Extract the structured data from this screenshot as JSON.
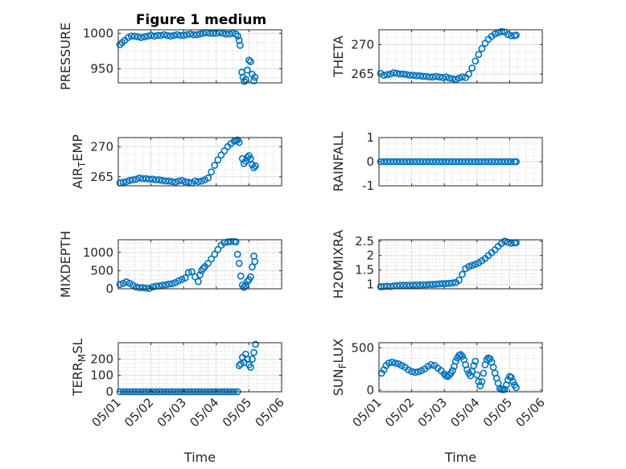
{
  "figure_title": "Figure 1 medium",
  "style": {
    "marker_color": "#0072BD",
    "grid_color": "#b9b9b9",
    "axis_color": "#262626"
  },
  "chart_data": [
    {
      "type": "scatter",
      "ylabel": "PRESSURE",
      "xlim": [
        "05/01",
        "05/06"
      ],
      "ylim": [
        930,
        1005
      ],
      "yticks": [
        950,
        1000
      ],
      "x_ticks_visible": false,
      "grid": true,
      "marker": "circle-open",
      "series": [
        {
          "x": [
            1.05,
            1.12,
            1.2,
            1.3,
            1.4,
            1.5,
            1.6,
            1.7,
            1.8,
            1.9,
            2.0,
            2.1,
            2.2,
            2.3,
            2.4,
            2.5,
            2.6,
            2.7,
            2.8,
            2.9,
            3.0,
            3.1,
            3.2,
            3.3,
            3.4,
            3.5,
            3.6,
            3.7,
            3.8,
            3.9,
            4.0,
            4.1,
            4.2,
            4.3,
            4.4,
            4.5,
            4.6,
            4.66,
            4.7,
            4.73,
            4.78,
            4.82,
            4.86,
            4.9,
            4.95,
            5.0,
            5.05,
            5.1,
            5.15,
            5.18
          ],
          "y": [
            984,
            987,
            990,
            994,
            996,
            996,
            995,
            994,
            995,
            996,
            997,
            996,
            997,
            997,
            998,
            997,
            996,
            997,
            998,
            997,
            997,
            998,
            999,
            998,
            998,
            999,
            1000,
            1001,
            1000,
            1000,
            1000,
            1001,
            1000,
            999,
            999,
            1000,
            999,
            996,
            990,
            983,
            945,
            938,
            932,
            935,
            948,
            962,
            960,
            942,
            933,
            938
          ]
        }
      ]
    },
    {
      "type": "scatter",
      "ylabel": "THETA",
      "xlim": [
        "05/01",
        "05/06"
      ],
      "ylim": [
        263.5,
        272.5
      ],
      "yticks": [
        265,
        270
      ],
      "x_ticks_visible": false,
      "grid": true,
      "marker": "circle-open",
      "series": [
        {
          "x": [
            1.05,
            1.15,
            1.25,
            1.35,
            1.45,
            1.55,
            1.65,
            1.75,
            1.85,
            1.95,
            2.05,
            2.15,
            2.25,
            2.35,
            2.45,
            2.55,
            2.65,
            2.75,
            2.85,
            2.95,
            3.05,
            3.15,
            3.25,
            3.35,
            3.45,
            3.55,
            3.65,
            3.75,
            3.85,
            3.95,
            4.05,
            4.15,
            4.25,
            4.35,
            4.45,
            4.55,
            4.65,
            4.75,
            4.85,
            4.95,
            5.05,
            5.15,
            5.2
          ],
          "y": [
            265.1,
            264.8,
            264.9,
            265.0,
            265.2,
            265.1,
            265.0,
            265.0,
            264.9,
            264.8,
            264.8,
            264.7,
            264.7,
            264.6,
            264.6,
            264.5,
            264.5,
            264.6,
            264.5,
            264.4,
            264.5,
            264.3,
            264.2,
            264.1,
            264.3,
            264.5,
            264.4,
            265.0,
            266.0,
            267.2,
            268.3,
            269.3,
            270.2,
            270.9,
            271.4,
            271.8,
            272.0,
            272.2,
            272.1,
            271.7,
            271.5,
            271.5,
            271.6
          ]
        }
      ]
    },
    {
      "type": "scatter",
      "ylabel": "AIR_TEMP",
      "xlim": [
        "05/01",
        "05/06"
      ],
      "ylim": [
        263.5,
        271.5
      ],
      "yticks": [
        265,
        270
      ],
      "x_ticks_visible": false,
      "grid": true,
      "marker": "circle-open",
      "series": [
        {
          "x": [
            1.05,
            1.15,
            1.25,
            1.35,
            1.45,
            1.55,
            1.65,
            1.75,
            1.85,
            1.95,
            2.05,
            2.15,
            2.25,
            2.35,
            2.45,
            2.55,
            2.65,
            2.75,
            2.85,
            2.95,
            3.05,
            3.15,
            3.25,
            3.35,
            3.45,
            3.55,
            3.65,
            3.75,
            3.85,
            3.95,
            4.05,
            4.15,
            4.25,
            4.35,
            4.45,
            4.55,
            4.6,
            4.65,
            4.7,
            4.8,
            4.85,
            4.9,
            4.95,
            5.0,
            5.05,
            5.1,
            5.15,
            5.2
          ],
          "y": [
            264.0,
            264.1,
            264.2,
            264.4,
            264.5,
            264.6,
            264.8,
            264.7,
            264.7,
            264.6,
            264.6,
            264.5,
            264.5,
            264.4,
            264.3,
            264.3,
            264.2,
            264.1,
            264.3,
            264.4,
            264.2,
            264.1,
            264.0,
            264.3,
            264.2,
            264.3,
            264.5,
            264.8,
            265.8,
            266.9,
            267.8,
            268.6,
            269.3,
            270.0,
            270.5,
            270.9,
            271.0,
            271.1,
            270.7,
            268.0,
            267.2,
            267.6,
            268.2,
            268.5,
            268.0,
            267.0,
            266.5,
            266.8
          ]
        }
      ]
    },
    {
      "type": "scatter",
      "ylabel": "RAINFALL",
      "xlim": [
        "05/01",
        "05/06"
      ],
      "ylim": [
        -1,
        1
      ],
      "yticks": [
        -1,
        0,
        1
      ],
      "x_ticks_visible": false,
      "grid": true,
      "marker": "circle-open",
      "series": [
        {
          "x": [
            1.05,
            1.15,
            1.25,
            1.35,
            1.45,
            1.55,
            1.65,
            1.75,
            1.85,
            1.95,
            2.05,
            2.15,
            2.25,
            2.35,
            2.45,
            2.55,
            2.65,
            2.75,
            2.85,
            2.95,
            3.05,
            3.15,
            3.25,
            3.35,
            3.45,
            3.55,
            3.65,
            3.75,
            3.85,
            3.95,
            4.05,
            4.15,
            4.25,
            4.35,
            4.45,
            4.55,
            4.65,
            4.75,
            4.85,
            4.95,
            5.05,
            5.15,
            5.2
          ],
          "y": [
            0,
            0,
            0,
            0,
            0,
            0,
            0,
            0,
            0,
            0,
            0,
            0,
            0,
            0,
            0,
            0,
            0,
            0,
            0,
            0,
            0,
            0,
            0,
            0,
            0,
            0,
            0,
            0,
            0,
            0,
            0,
            0,
            0,
            0,
            0,
            0,
            0,
            0,
            0,
            0,
            0,
            0,
            0
          ]
        }
      ]
    },
    {
      "type": "scatter",
      "ylabel": "MIXDEPTH",
      "xlim": [
        "05/01",
        "05/06"
      ],
      "ylim": [
        0,
        1350
      ],
      "yticks": [
        0,
        500,
        1000
      ],
      "x_ticks_visible": false,
      "grid": true,
      "marker": "circle-open",
      "series": [
        {
          "x": [
            1.05,
            1.15,
            1.25,
            1.35,
            1.45,
            1.55,
            1.65,
            1.75,
            1.85,
            1.95,
            2.05,
            2.15,
            2.25,
            2.35,
            2.45,
            2.55,
            2.65,
            2.75,
            2.85,
            2.95,
            3.05,
            3.15,
            3.25,
            3.35,
            3.45,
            3.5,
            3.55,
            3.6,
            3.65,
            3.75,
            3.85,
            3.95,
            4.05,
            4.15,
            4.25,
            4.35,
            4.45,
            4.55,
            4.6,
            4.65,
            4.7,
            4.75,
            4.8,
            4.85,
            4.9,
            4.95,
            5.0,
            5.05,
            5.1,
            5.15,
            5.18
          ],
          "y": [
            120,
            150,
            190,
            150,
            100,
            50,
            30,
            30,
            20,
            10,
            50,
            70,
            80,
            100,
            110,
            130,
            140,
            170,
            220,
            260,
            300,
            450,
            470,
            330,
            200,
            380,
            500,
            560,
            610,
            700,
            820,
            950,
            1080,
            1200,
            1270,
            1290,
            1300,
            1300,
            1290,
            950,
            700,
            350,
            100,
            40,
            90,
            200,
            250,
            330,
            600,
            900,
            750
          ]
        }
      ]
    },
    {
      "type": "scatter",
      "ylabel": "H2OMIXRA",
      "xlim": [
        "05/01",
        "05/06"
      ],
      "ylim": [
        0.85,
        2.55
      ],
      "yticks": [
        1,
        1.5,
        2,
        2.5
      ],
      "x_ticks_visible": false,
      "grid": true,
      "marker": "circle-open",
      "series": [
        {
          "x": [
            1.05,
            1.15,
            1.25,
            1.35,
            1.45,
            1.55,
            1.65,
            1.75,
            1.85,
            1.95,
            2.05,
            2.15,
            2.25,
            2.35,
            2.45,
            2.55,
            2.65,
            2.75,
            2.85,
            2.95,
            3.05,
            3.15,
            3.25,
            3.35,
            3.45,
            3.55,
            3.65,
            3.75,
            3.85,
            3.95,
            4.05,
            4.15,
            4.25,
            4.35,
            4.45,
            4.55,
            4.65,
            4.75,
            4.85,
            4.95,
            5.05,
            5.15,
            5.2
          ],
          "y": [
            0.92,
            0.93,
            0.94,
            0.93,
            0.95,
            0.96,
            0.97,
            0.97,
            0.97,
            0.97,
            0.98,
            0.98,
            0.98,
            0.99,
            0.99,
            1.0,
            1.0,
            1.01,
            1.02,
            1.03,
            1.03,
            1.04,
            1.05,
            1.07,
            1.15,
            1.35,
            1.55,
            1.62,
            1.66,
            1.7,
            1.75,
            1.82,
            1.9,
            2.0,
            2.1,
            2.2,
            2.32,
            2.42,
            2.5,
            2.46,
            2.43,
            2.44,
            2.45
          ]
        }
      ]
    },
    {
      "type": "scatter",
      "ylabel": "TERR_MSL",
      "xlabel": "Time",
      "xlim": [
        "05/01",
        "05/06"
      ],
      "xticks": [
        "05/01",
        "05/02",
        "05/03",
        "05/04",
        "05/05",
        "05/06"
      ],
      "ylim": [
        0,
        300
      ],
      "yticks": [
        0,
        100,
        200
      ],
      "grid": true,
      "marker": "circle-open",
      "series": [
        {
          "x": [
            1.05,
            1.15,
            1.25,
            1.35,
            1.45,
            1.55,
            1.65,
            1.75,
            1.85,
            1.95,
            2.05,
            2.15,
            2.25,
            2.35,
            2.45,
            2.55,
            2.65,
            2.75,
            2.85,
            2.95,
            3.05,
            3.15,
            3.25,
            3.35,
            3.45,
            3.55,
            3.65,
            3.75,
            3.85,
            3.95,
            4.05,
            4.15,
            4.25,
            4.35,
            4.45,
            4.55,
            4.65,
            4.7,
            4.75,
            4.8,
            4.85,
            4.9,
            4.95,
            5.0,
            5.05,
            5.1,
            5.15,
            5.2
          ],
          "y": [
            0,
            0,
            0,
            0,
            0,
            0,
            0,
            0,
            0,
            0,
            0,
            0,
            0,
            0,
            0,
            0,
            0,
            0,
            0,
            0,
            0,
            0,
            0,
            0,
            0,
            0,
            0,
            0,
            0,
            0,
            0,
            0,
            0,
            0,
            0,
            0,
            0,
            160,
            170,
            210,
            180,
            230,
            200,
            165,
            150,
            200,
            240,
            290
          ]
        }
      ]
    },
    {
      "type": "scatter",
      "ylabel": "SUN_FLUX",
      "xlabel": "Time",
      "xlim": [
        "05/01",
        "05/06"
      ],
      "xticks": [
        "05/01",
        "05/02",
        "05/03",
        "05/04",
        "05/05",
        "05/06"
      ],
      "ylim": [
        -20,
        560
      ],
      "yticks": [
        0,
        500
      ],
      "grid": true,
      "marker": "circle-open",
      "series": [
        {
          "x": [
            1.08,
            1.15,
            1.22,
            1.3,
            1.4,
            1.5,
            1.6,
            1.7,
            1.8,
            1.9,
            2.0,
            2.1,
            2.2,
            2.3,
            2.4,
            2.5,
            2.6,
            2.7,
            2.8,
            2.9,
            3.0,
            3.05,
            3.1,
            3.15,
            3.2,
            3.25,
            3.3,
            3.35,
            3.4,
            3.45,
            3.5,
            3.55,
            3.6,
            3.65,
            3.7,
            3.75,
            3.8,
            3.85,
            3.9,
            3.95,
            4.0,
            4.05,
            4.1,
            4.15,
            4.2,
            4.25,
            4.3,
            4.35,
            4.4,
            4.45,
            4.5,
            4.55,
            4.6,
            4.65,
            4.7,
            4.75,
            4.8,
            4.85,
            4.9,
            4.95,
            5.0,
            5.05,
            5.1,
            5.15,
            5.2
          ],
          "y": [
            200,
            240,
            290,
            320,
            330,
            320,
            310,
            290,
            270,
            240,
            220,
            210,
            215,
            230,
            250,
            280,
            300,
            290,
            260,
            230,
            190,
            170,
            160,
            175,
            200,
            230,
            280,
            340,
            380,
            410,
            420,
            400,
            360,
            300,
            240,
            200,
            170,
            220,
            290,
            340,
            180,
            100,
            50,
            100,
            200,
            300,
            360,
            380,
            370,
            330,
            270,
            200,
            140,
            80,
            20,
            10,
            5,
            10,
            60,
            120,
            160,
            150,
            100,
            60,
            30
          ]
        }
      ]
    }
  ]
}
